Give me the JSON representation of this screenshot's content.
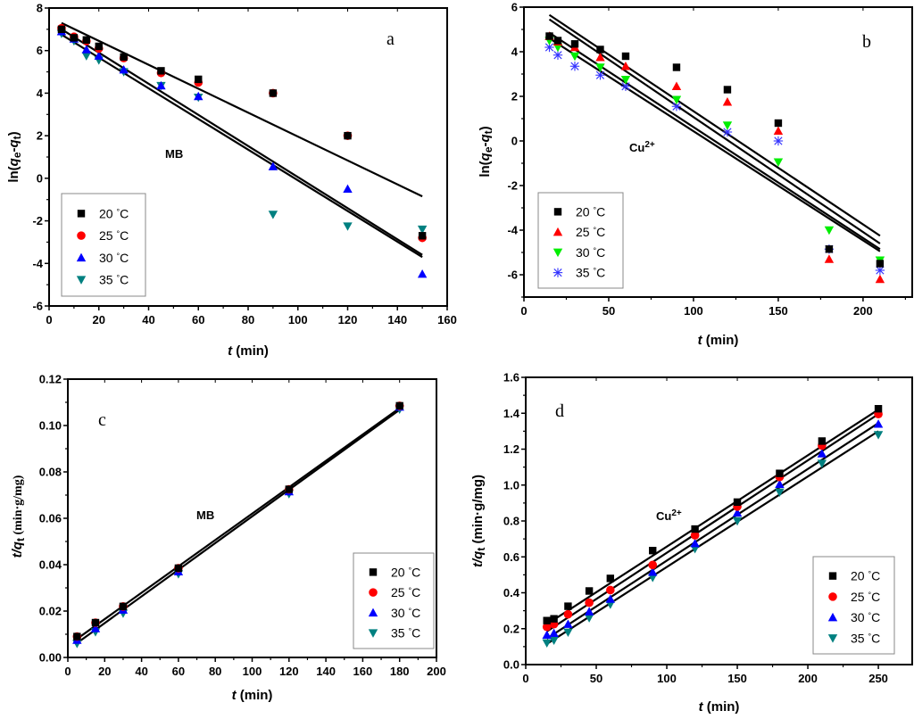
{
  "chart_data": [
    {
      "id": "a",
      "type": "scatter",
      "panel_label": "a",
      "annotation": "MB",
      "xlabel_italic": "t",
      "xlabel_rest": " (min)",
      "ylabel": "ln(qe-qt)",
      "ylabel_parts": {
        "pre": "ln(",
        "q1": "q",
        "s1": "e",
        "mid": "-",
        "q2": "q",
        "s2": "t",
        "post": ")"
      },
      "xlim": [
        0,
        160
      ],
      "ylim": [
        -6,
        8
      ],
      "xticks": [
        0,
        20,
        40,
        60,
        80,
        100,
        120,
        140,
        160
      ],
      "yticks": [
        -6,
        -4,
        -2,
        0,
        2,
        4,
        6,
        8
      ],
      "legend_position": "bottom-left",
      "x": [
        5,
        10,
        15,
        20,
        30,
        45,
        60,
        90,
        120,
        150
      ],
      "series": [
        {
          "name": "20 °C",
          "marker": "square",
          "color": "#000000",
          "values": [
            7.0,
            6.6,
            6.5,
            6.2,
            5.7,
            5.05,
            4.65,
            4.0,
            2.0,
            -2.7
          ]
        },
        {
          "name": "25 °C",
          "marker": "circle",
          "color": "#ff0000",
          "values": [
            7.05,
            6.65,
            6.45,
            6.1,
            5.65,
            4.95,
            4.5,
            4.0,
            2.0,
            -2.8
          ]
        },
        {
          "name": "30 °C",
          "marker": "triangle-up",
          "color": "#0000ff",
          "values": [
            6.9,
            6.55,
            6.05,
            5.75,
            5.1,
            4.35,
            3.85,
            0.55,
            -0.5,
            -4.5
          ]
        },
        {
          "name": "35 °C",
          "marker": "triangle-down",
          "color": "#008080",
          "values": [
            6.8,
            6.45,
            5.75,
            5.55,
            5.0,
            4.35,
            3.8,
            -1.7,
            -2.25,
            -2.4
          ]
        }
      ],
      "fit_lines": [
        {
          "x": [
            5,
            150
          ],
          "y": [
            7.3,
            -0.85
          ]
        },
        {
          "x": [
            5,
            150
          ],
          "y": [
            7.0,
            -3.6
          ]
        },
        {
          "x": [
            5,
            150
          ],
          "y": [
            6.75,
            -3.7
          ]
        }
      ]
    },
    {
      "id": "b",
      "type": "scatter",
      "panel_label": "b",
      "annotation": "Cu",
      "annotation_sup": "2+",
      "xlabel_italic": "t",
      "xlabel_rest": " (min)",
      "ylabel": "ln(qe-qt)",
      "ylabel_parts": {
        "pre": "ln(",
        "q1": "q",
        "s1": "e",
        "mid": "-",
        "q2": "q",
        "s2": "t",
        "post": ")"
      },
      "xlim": [
        0,
        229
      ],
      "ylim": [
        -7,
        6
      ],
      "xticks": [
        0,
        50,
        100,
        150,
        200
      ],
      "yticks": [
        -6,
        -4,
        -2,
        0,
        2,
        4,
        6
      ],
      "legend_position": "bottom-left",
      "x": [
        15,
        20,
        30,
        45,
        60,
        90,
        120,
        150,
        180,
        210
      ],
      "series": [
        {
          "name": "20 °C",
          "marker": "square",
          "color": "#000000",
          "values": [
            4.7,
            4.5,
            4.35,
            4.1,
            3.8,
            3.3,
            2.3,
            0.8,
            -4.85,
            -5.5
          ]
        },
        {
          "name": "25 °C",
          "marker": "triangle-up",
          "color": "#ff0000",
          "values": [
            4.7,
            4.45,
            4.2,
            3.75,
            3.35,
            2.45,
            1.75,
            0.45,
            -5.3,
            -6.2
          ]
        },
        {
          "name": "30 °C",
          "marker": "triangle-down",
          "color": "#00ee00",
          "values": [
            4.5,
            4.2,
            3.8,
            3.3,
            2.75,
            1.85,
            0.7,
            -0.95,
            -4.0,
            -5.35
          ]
        },
        {
          "name": "35 °C",
          "marker": "asterisk",
          "color": "#3333ff",
          "values": [
            4.2,
            3.85,
            3.35,
            2.95,
            2.45,
            1.55,
            0.4,
            0.0,
            -4.85,
            -5.8
          ]
        }
      ],
      "fit_lines": [
        {
          "x": [
            15,
            210
          ],
          "y": [
            5.65,
            -4.25
          ]
        },
        {
          "x": [
            15,
            210
          ],
          "y": [
            5.45,
            -4.6
          ]
        },
        {
          "x": [
            15,
            210
          ],
          "y": [
            4.85,
            -4.85
          ]
        },
        {
          "x": [
            15,
            210
          ],
          "y": [
            4.6,
            -4.95
          ]
        }
      ]
    },
    {
      "id": "c",
      "type": "scatter",
      "panel_label": "c",
      "annotation": "MB",
      "xlabel_italic": "t",
      "xlabel_rest": " (min)",
      "ylabel": "t/qt (min·g/mg)",
      "ylabel_parts": {
        "t": "t",
        "slash": "/",
        "q": "q",
        "s": "t",
        "units": "(min·g/mg)"
      },
      "xlim": [
        0,
        200
      ],
      "ylim": [
        0,
        0.12
      ],
      "xticks": [
        0,
        20,
        40,
        60,
        80,
        100,
        120,
        140,
        160,
        180,
        200
      ],
      "yticks": [
        0.0,
        0.02,
        0.04,
        0.06,
        0.08,
        0.1,
        0.12
      ],
      "ytick_decimals": 2,
      "legend_position": "bottom-right",
      "x": [
        5,
        15,
        30,
        60,
        120,
        180
      ],
      "series": [
        {
          "name": "20 °C",
          "marker": "square",
          "color": "#000000",
          "values": [
            0.009,
            0.015,
            0.022,
            0.0385,
            0.0725,
            0.1085
          ]
        },
        {
          "name": "25 °C",
          "marker": "circle",
          "color": "#ff0000",
          "values": [
            0.009,
            0.015,
            0.022,
            0.0385,
            0.0725,
            0.1085
          ]
        },
        {
          "name": "30 °C",
          "marker": "triangle-up",
          "color": "#0000ff",
          "values": [
            0.0075,
            0.0125,
            0.0205,
            0.037,
            0.0715,
            0.108
          ]
        },
        {
          "name": "35 °C",
          "marker": "triangle-down",
          "color": "#008080",
          "values": [
            0.006,
            0.011,
            0.019,
            0.036,
            0.0705,
            0.107
          ]
        }
      ],
      "fit_lines": [
        {
          "x": [
            5,
            180
          ],
          "y": [
            0.008,
            0.1075
          ]
        },
        {
          "x": [
            5,
            180
          ],
          "y": [
            0.0062,
            0.1068
          ]
        }
      ]
    },
    {
      "id": "d",
      "type": "scatter",
      "panel_label": "d",
      "annotation": "Cu",
      "annotation_sup": "2+",
      "xlabel_italic": "t",
      "xlabel_rest": " (min)",
      "ylabel": "t/qt (min·g/mg)",
      "ylabel_parts": {
        "t": "t",
        "slash": "/",
        "q": "q",
        "s": "t",
        "units": "(min·g/mg)"
      },
      "xlim": [
        0,
        274
      ],
      "ylim": [
        0,
        1.6
      ],
      "xticks": [
        0,
        50,
        100,
        150,
        200,
        250
      ],
      "yticks": [
        0.0,
        0.2,
        0.4,
        0.6,
        0.8,
        1.0,
        1.2,
        1.4,
        1.6
      ],
      "ytick_decimals": 1,
      "legend_position": "bottom-right",
      "x": [
        15,
        20,
        30,
        45,
        60,
        90,
        120,
        150,
        180,
        210,
        250
      ],
      "series": [
        {
          "name": "20 °C",
          "marker": "square",
          "color": "#000000",
          "values": [
            0.245,
            0.255,
            0.325,
            0.41,
            0.48,
            0.635,
            0.755,
            0.905,
            1.065,
            1.245,
            1.425
          ]
        },
        {
          "name": "25 °C",
          "marker": "circle",
          "color": "#ff0000",
          "values": [
            0.21,
            0.225,
            0.28,
            0.345,
            0.415,
            0.555,
            0.72,
            0.88,
            1.045,
            1.22,
            1.395
          ]
        },
        {
          "name": "30 °C",
          "marker": "triangle-up",
          "color": "#0000ff",
          "values": [
            0.165,
            0.175,
            0.225,
            0.295,
            0.365,
            0.515,
            0.675,
            0.845,
            1.005,
            1.175,
            1.34
          ]
        },
        {
          "name": "35 °C",
          "marker": "triangle-down",
          "color": "#008080",
          "values": [
            0.12,
            0.135,
            0.18,
            0.26,
            0.335,
            0.485,
            0.645,
            0.8,
            0.96,
            1.12,
            1.28
          ]
        }
      ],
      "fit_lines": [
        {
          "x": [
            15,
            250
          ],
          "y": [
            0.225,
            1.42
          ]
        },
        {
          "x": [
            15,
            250
          ],
          "y": [
            0.185,
            1.395
          ]
        },
        {
          "x": [
            15,
            250
          ],
          "y": [
            0.145,
            1.345
          ]
        },
        {
          "x": [
            15,
            250
          ],
          "y": [
            0.115,
            1.3
          ]
        }
      ]
    }
  ]
}
